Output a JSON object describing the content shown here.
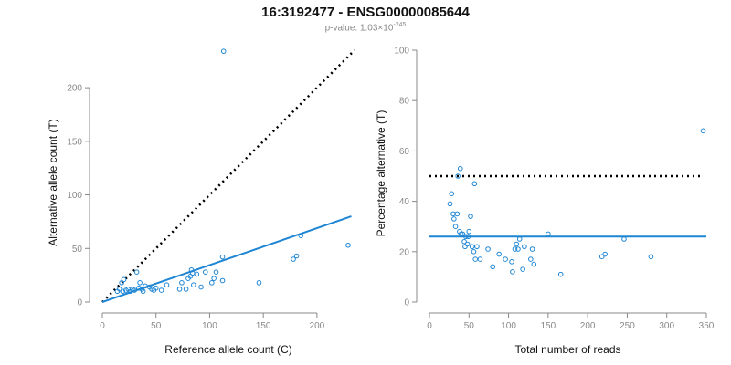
{
  "title": "16:3192477 - ENSG00000085644",
  "subtitle": {
    "prefix": "p-value: 1.03×10",
    "exponent": "-245"
  },
  "colors": {
    "points": "#1f86d4",
    "fit": "#1f86d4",
    "reference": "#000000",
    "axis": "#888888"
  },
  "chart_data": [
    {
      "type": "scatter",
      "title": "",
      "xlabel": "Reference allele count (C)",
      "ylabel": "Alternative allele count (T)",
      "xlim": [
        0,
        235
      ],
      "ylim": [
        0,
        235
      ],
      "xticks": [
        0,
        50,
        100,
        150,
        200
      ],
      "yticks": [
        0,
        50,
        100,
        150,
        200
      ],
      "grid": false,
      "legend": "none",
      "reference_line": {
        "style": "dotted",
        "x": [
          0,
          235
        ],
        "y": [
          0,
          235
        ]
      },
      "fit_line": {
        "style": "solid",
        "x": [
          0,
          232
        ],
        "y": [
          0,
          80
        ]
      },
      "points": [
        [
          14,
          10
        ],
        [
          16,
          12
        ],
        [
          18,
          18
        ],
        [
          20,
          21
        ],
        [
          19,
          10
        ],
        [
          22,
          11
        ],
        [
          24,
          12
        ],
        [
          26,
          10
        ],
        [
          28,
          12
        ],
        [
          30,
          11
        ],
        [
          32,
          28
        ],
        [
          34,
          13
        ],
        [
          35,
          18
        ],
        [
          37,
          12
        ],
        [
          38,
          10
        ],
        [
          40,
          15
        ],
        [
          44,
          14
        ],
        [
          46,
          12
        ],
        [
          48,
          11
        ],
        [
          50,
          13
        ],
        [
          55,
          11
        ],
        [
          60,
          16
        ],
        [
          72,
          12
        ],
        [
          74,
          18
        ],
        [
          78,
          12
        ],
        [
          80,
          22
        ],
        [
          82,
          24
        ],
        [
          83,
          30
        ],
        [
          84,
          27
        ],
        [
          85,
          16
        ],
        [
          88,
          26
        ],
        [
          92,
          14
        ],
        [
          96,
          28
        ],
        [
          102,
          18
        ],
        [
          104,
          22
        ],
        [
          106,
          28
        ],
        [
          112,
          42
        ],
        [
          112,
          20
        ],
        [
          113,
          234
        ],
        [
          146,
          18
        ],
        [
          178,
          40
        ],
        [
          181,
          43
        ],
        [
          185,
          62
        ],
        [
          229,
          53
        ]
      ]
    },
    {
      "type": "scatter",
      "title": "",
      "xlabel": "Total number of reads",
      "ylabel": "Percentage alternative (T)",
      "xlim": [
        0,
        350
      ],
      "ylim": [
        0,
        100
      ],
      "xticks": [
        0,
        50,
        100,
        150,
        200,
        250,
        300,
        350
      ],
      "yticks": [
        0,
        20,
        40,
        60,
        80,
        100
      ],
      "grid": false,
      "legend": "none",
      "reference_line": {
        "style": "dotted",
        "x": [
          0,
          345
        ],
        "y": [
          50,
          50
        ]
      },
      "fit_line": {
        "style": "solid",
        "x": [
          0,
          350
        ],
        "y": [
          26,
          26
        ]
      },
      "points": [
        [
          26,
          39
        ],
        [
          28,
          43
        ],
        [
          30,
          35
        ],
        [
          31,
          33
        ],
        [
          33,
          30
        ],
        [
          35,
          35
        ],
        [
          36,
          50
        ],
        [
          38,
          28
        ],
        [
          39,
          53
        ],
        [
          40,
          27
        ],
        [
          42,
          27
        ],
        [
          44,
          24
        ],
        [
          45,
          22
        ],
        [
          46,
          26
        ],
        [
          48,
          23
        ],
        [
          49,
          26
        ],
        [
          50,
          28
        ],
        [
          52,
          34
        ],
        [
          54,
          22
        ],
        [
          56,
          20
        ],
        [
          57,
          47
        ],
        [
          58,
          17
        ],
        [
          60,
          22
        ],
        [
          64,
          17
        ],
        [
          74,
          21
        ],
        [
          80,
          14
        ],
        [
          88,
          19
        ],
        [
          96,
          17
        ],
        [
          104,
          16
        ],
        [
          105,
          12
        ],
        [
          108,
          21
        ],
        [
          110,
          23
        ],
        [
          112,
          21
        ],
        [
          114,
          25
        ],
        [
          118,
          13
        ],
        [
          120,
          22
        ],
        [
          128,
          17
        ],
        [
          130,
          21
        ],
        [
          132,
          15
        ],
        [
          150,
          27
        ],
        [
          166,
          11
        ],
        [
          218,
          18
        ],
        [
          222,
          19
        ],
        [
          246,
          25
        ],
        [
          280,
          18
        ],
        [
          346,
          68
        ]
      ]
    }
  ]
}
